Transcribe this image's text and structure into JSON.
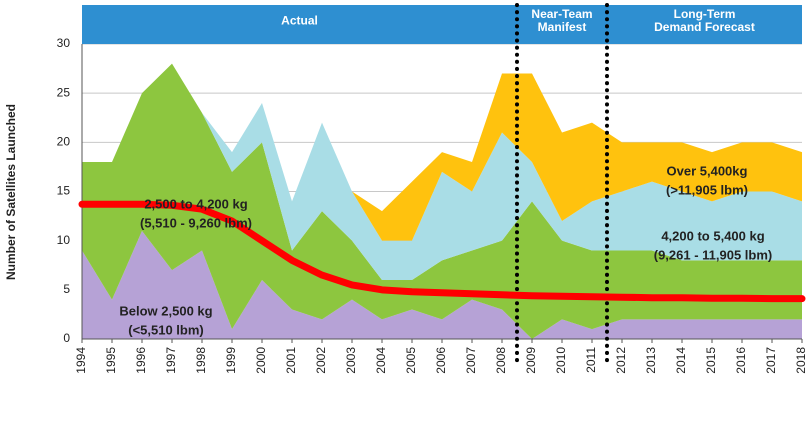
{
  "chart_data": {
    "type": "stacked_area",
    "y_label": "Number of Satellites Launched",
    "x": [
      1994,
      1995,
      1996,
      1997,
      1998,
      1999,
      2000,
      2001,
      2002,
      2003,
      2004,
      2005,
      2006,
      2007,
      2008,
      2009,
      2010,
      2011,
      2012,
      2013,
      2014,
      2015,
      2016,
      2017,
      2018
    ],
    "xlim": [
      1994,
      2018
    ],
    "ylim": [
      0,
      30
    ],
    "yticks": [
      0,
      5,
      10,
      15,
      20,
      25,
      30
    ],
    "grid": true,
    "series": [
      {
        "name": "Below 2,500 kg",
        "note": "(<5,510 lbm)",
        "color": "#b6a2d6",
        "values": [
          9,
          4,
          11,
          7,
          9,
          1,
          6,
          3,
          2,
          4,
          2,
          3,
          2,
          4,
          3,
          0,
          2,
          1,
          2,
          2,
          2,
          2,
          2,
          2,
          2
        ]
      },
      {
        "name": "2,500 to 4,200 kg",
        "note": "(5,510 - 9,260 lbm)",
        "color": "#8dc63f",
        "values": [
          9,
          14,
          14,
          21,
          14,
          16,
          14,
          6,
          11,
          6,
          4,
          3,
          6,
          5,
          7,
          14,
          8,
          8,
          7,
          7,
          6,
          6,
          6,
          6,
          6
        ]
      },
      {
        "name": "4,200 to 5,400 kg",
        "note": "(9,261 - 11,905 lbm)",
        "color": "#a9dde6",
        "values": [
          0,
          0,
          0,
          0,
          0,
          2,
          4,
          5,
          9,
          5,
          4,
          4,
          9,
          6,
          11,
          4,
          2,
          5,
          6,
          7,
          7,
          6,
          7,
          7,
          6
        ]
      },
      {
        "name": "Over 5,400kg",
        "note": "(>11,905 lbm)",
        "color": "#ffc20e",
        "values": [
          0,
          0,
          0,
          0,
          0,
          0,
          0,
          0,
          0,
          0,
          3,
          6,
          2,
          3,
          6,
          9,
          9,
          8,
          5,
          4,
          5,
          5,
          5,
          5,
          5
        ]
      }
    ],
    "trend_line": {
      "color": "#ff0000",
      "values": [
        13.7,
        13.7,
        13.7,
        13.6,
        13.2,
        12,
        10,
        8,
        6.5,
        5.5,
        5,
        4.8,
        4.7,
        4.6,
        4.5,
        4.4,
        4.35,
        4.3,
        4.25,
        4.2,
        4.2,
        4.15,
        4.15,
        4.1,
        4.1
      ]
    },
    "periods": [
      {
        "lines": [
          "Actual"
        ],
        "range": [
          1994,
          2008.5
        ]
      },
      {
        "lines": [
          "Near-Team",
          "Manifest"
        ],
        "range": [
          2008.5,
          2011.5
        ]
      },
      {
        "lines": [
          "Long-Term",
          "Demand Forecast"
        ],
        "range": [
          2011.5,
          2018
        ]
      }
    ],
    "dividers": [
      2008.5,
      2011.5
    ],
    "header_color": "#2e8fd1"
  }
}
